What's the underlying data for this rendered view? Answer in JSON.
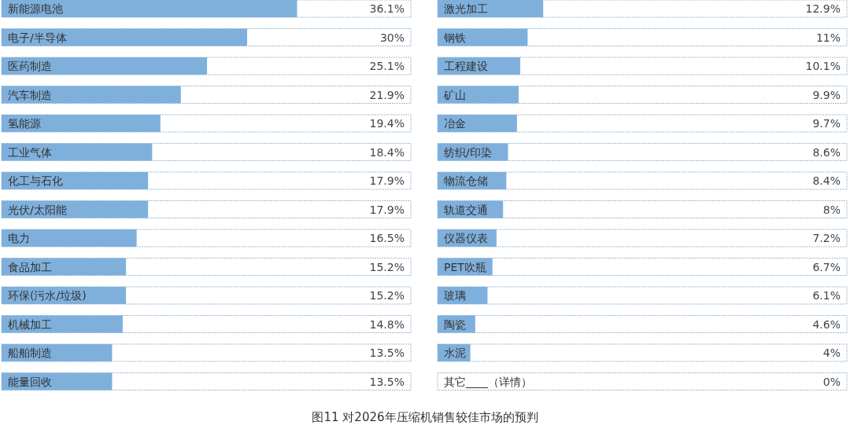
{
  "chart_data": [
    {
      "type": "bar",
      "orientation": "horizontal",
      "xlim": [
        0,
        50
      ],
      "color": "#7fb0dc",
      "categories": [
        "新能源电池",
        "电子/半导体",
        "医药制造",
        "汽车制造",
        "氢能源",
        "工业气体",
        "化工与石化",
        "光伏/太阳能",
        "电力",
        "食品加工",
        "环保(污水/垃圾)",
        "机械加工",
        "船舶制造",
        "能量回收"
      ],
      "values": [
        36.1,
        30,
        25.1,
        21.9,
        19.4,
        18.4,
        17.9,
        17.9,
        16.5,
        15.2,
        15.2,
        14.8,
        13.5,
        13.5
      ],
      "value_labels": [
        "36.1%",
        "30%",
        "25.1%",
        "21.9%",
        "19.4%",
        "18.4%",
        "17.9%",
        "17.9%",
        "16.5%",
        "15.2%",
        "15.2%",
        "14.8%",
        "13.5%",
        "13.5%"
      ],
      "annotations": [
        "图11 对2026年压缩机销售较佳市场的预判"
      ]
    },
    {
      "type": "bar",
      "orientation": "horizontal",
      "xlim": [
        0,
        50
      ],
      "color": "#7fb0dc",
      "categories": [
        "激光加工",
        "钢铁",
        "工程建设",
        "矿山",
        "冶金",
        "纺织/印染",
        "物流仓储",
        "轨道交通",
        "仪器仪表",
        "PET吹瓶",
        "玻璃",
        "陶瓷",
        "水泥",
        "其它____（详情）"
      ],
      "values": [
        12.9,
        11,
        10.1,
        9.9,
        9.7,
        8.6,
        8.4,
        8,
        7.2,
        6.7,
        6.1,
        4.6,
        4,
        0
      ],
      "value_labels": [
        "12.9%",
        "11%",
        "10.1%",
        "9.9%",
        "9.7%",
        "8.6%",
        "8.4%",
        "8%",
        "7.2%",
        "6.7%",
        "6.1%",
        "4.6%",
        "4%",
        "0%"
      ]
    }
  ]
}
